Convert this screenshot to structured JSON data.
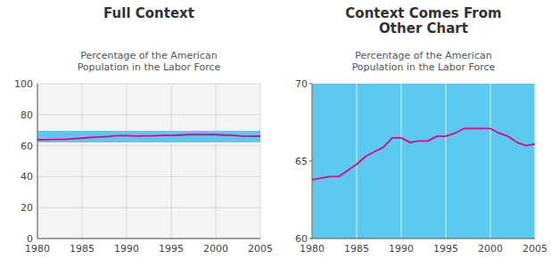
{
  "chart_data": [
    {
      "type": "line",
      "title": "Full Context",
      "subtitle": "Percentage of the American\nPopulation in the Labor Force",
      "x": [
        1980,
        1981,
        1982,
        1983,
        1984,
        1985,
        1986,
        1987,
        1988,
        1989,
        1990,
        1991,
        1992,
        1993,
        1994,
        1995,
        1996,
        1997,
        1998,
        1999,
        2000,
        2001,
        2002,
        2003,
        2004,
        2005
      ],
      "values": [
        63.8,
        63.9,
        64.0,
        64.0,
        64.4,
        64.8,
        65.3,
        65.6,
        65.9,
        66.5,
        66.5,
        66.2,
        66.3,
        66.3,
        66.6,
        66.6,
        66.8,
        67.1,
        67.1,
        67.1,
        67.1,
        66.8,
        66.6,
        66.2,
        66.0,
        66.1
      ],
      "color": "#e8007f",
      "band": {
        "lower": 62.0,
        "upper": 69.5,
        "color": "#5bc8f0"
      },
      "xlim": [
        1980,
        2005
      ],
      "xticks": [
        1980,
        1985,
        1990,
        1995,
        2000,
        2005
      ],
      "ylim": [
        0,
        100
      ],
      "yticks": [
        0,
        20,
        40,
        60,
        80,
        100
      ],
      "grid": true
    },
    {
      "type": "line",
      "title": "Context Comes From\nOther Chart",
      "subtitle": "Percentage of the American\nPopulation in the Labor Force",
      "x": [
        1980,
        1981,
        1982,
        1983,
        1984,
        1985,
        1986,
        1987,
        1988,
        1989,
        1990,
        1991,
        1992,
        1993,
        1994,
        1995,
        1996,
        1997,
        1998,
        1999,
        2000,
        2001,
        2002,
        2003,
        2004,
        2005
      ],
      "values": [
        63.8,
        63.9,
        64.0,
        64.0,
        64.4,
        64.8,
        65.3,
        65.6,
        65.9,
        66.5,
        66.5,
        66.2,
        66.3,
        66.3,
        66.6,
        66.6,
        66.8,
        67.1,
        67.1,
        67.1,
        67.1,
        66.8,
        66.6,
        66.2,
        66.0,
        66.1
      ],
      "color": "#e8007f",
      "xlim": [
        1980,
        2005
      ],
      "xticks": [
        1980,
        1985,
        1990,
        1995,
        2000,
        2005
      ],
      "ylim": [
        60,
        70
      ],
      "yticks": [
        60,
        65,
        70
      ],
      "grid": "x"
    }
  ]
}
